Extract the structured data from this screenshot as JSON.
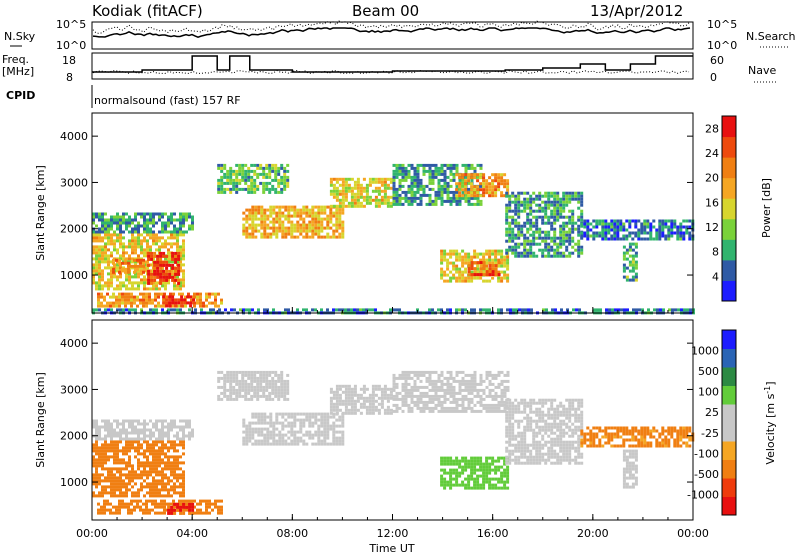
{
  "header": {
    "station": "Kodiak (fitACF)",
    "beam": "Beam 00",
    "date": "13/Apr/2012"
  },
  "strips": {
    "nsky_label": "N.Sky",
    "nsearch_label": "N.Search",
    "nsky_ticks": [
      "10^5",
      "10^0"
    ],
    "nsearch_ticks": [
      "10^5",
      "10^0"
    ],
    "freq_label_1": "Freq.",
    "freq_label_2": "[MHz]",
    "freq_ticks": [
      "18",
      "8"
    ],
    "nave_label": "Nave",
    "nave_ticks": [
      "60",
      "0"
    ],
    "cpid_label": "CPID",
    "cpid_text": "normalsound (fast) 157 RF"
  },
  "colors": {
    "power_bar": [
      "#1c1cff",
      "#2f5aa5",
      "#31b46e",
      "#7ad23a",
      "#d7d52e",
      "#f5a623",
      "#f07f12",
      "#ee4a0d",
      "#e81010"
    ],
    "velocity_bar": [
      "#e81010",
      "#ef3b0c",
      "#f07f12",
      "#f5a623",
      "#c8c8c8",
      "#c8c8c8",
      "#62cc3a",
      "#2c8a43",
      "#2a64b5",
      "#1c1cff"
    ],
    "ground_scatter": "#c8c8c8"
  },
  "chart_data": [
    {
      "type": "heatmap",
      "title": "Power",
      "xlabel": "Time UT",
      "ylabel": "Slant Range [km]",
      "xlim": [
        "00:00",
        "24:00"
      ],
      "ylim": [
        180,
        4500
      ],
      "x_ticks": [
        "00:00",
        "04:00",
        "08:00",
        "12:00",
        "16:00",
        "20:00",
        "00:00"
      ],
      "y_ticks": [
        1000,
        2000,
        3000,
        4000
      ],
      "colorbar_label": "Power [dB]",
      "colorbar_ticks": [
        4,
        8,
        12,
        16,
        20,
        24,
        28
      ],
      "colorbar_range": [
        0,
        30
      ],
      "regions": [
        {
          "t0": 0.0,
          "t1": 3.6,
          "r0": 700,
          "r1": 1900,
          "value": 16
        },
        {
          "t0": 2.2,
          "t1": 3.4,
          "r0": 800,
          "r1": 1500,
          "value": 27
        },
        {
          "t0": 0.8,
          "t1": 2.0,
          "r0": 1050,
          "r1": 1350,
          "value": 22
        },
        {
          "t0": 0.2,
          "t1": 5.2,
          "r0": 300,
          "r1": 620,
          "value": 20
        },
        {
          "t0": 2.8,
          "t1": 4.0,
          "r0": 360,
          "r1": 560,
          "value": 27
        },
        {
          "t0": 0.0,
          "t1": 4.0,
          "r0": 1900,
          "r1": 2350,
          "value": 8
        },
        {
          "t0": 6.0,
          "t1": 10.0,
          "r0": 1800,
          "r1": 2500,
          "value": 18
        },
        {
          "t0": 9.5,
          "t1": 12.0,
          "r0": 2500,
          "r1": 3100,
          "value": 16
        },
        {
          "t0": 5.0,
          "t1": 7.8,
          "r0": 2800,
          "r1": 3400,
          "value": 10
        },
        {
          "t0": 12.0,
          "t1": 15.5,
          "r0": 2500,
          "r1": 3400,
          "value": 8
        },
        {
          "t0": 14.5,
          "t1": 16.6,
          "r0": 2700,
          "r1": 3200,
          "value": 20
        },
        {
          "t0": 13.9,
          "t1": 16.6,
          "r0": 850,
          "r1": 1550,
          "value": 16
        },
        {
          "t0": 15.0,
          "t1": 16.2,
          "r0": 1000,
          "r1": 1300,
          "value": 24
        },
        {
          "t0": 16.5,
          "t1": 19.5,
          "r0": 1400,
          "r1": 2800,
          "value": 8
        },
        {
          "t0": 19.5,
          "t1": 24.0,
          "r0": 1800,
          "r1": 2200,
          "value": 6
        },
        {
          "t0": 21.2,
          "t1": 21.7,
          "r0": 900,
          "r1": 1700,
          "value": 10
        },
        {
          "t0": 0.0,
          "t1": 24.0,
          "r0": 200,
          "r1": 280,
          "value": 6
        }
      ]
    },
    {
      "type": "heatmap",
      "title": "Velocity",
      "xlabel": "Time UT",
      "ylabel": "Slant Range [km]",
      "xlim": [
        "00:00",
        "24:00"
      ],
      "ylim": [
        180,
        4500
      ],
      "x_ticks": [
        "00:00",
        "04:00",
        "08:00",
        "12:00",
        "16:00",
        "20:00",
        "00:00"
      ],
      "y_ticks": [
        1000,
        2000,
        3000,
        4000
      ],
      "colorbar_label": "Velocity [m s^-1]",
      "colorbar_ticks": [
        1000,
        500,
        100,
        25,
        -25,
        -100,
        -500,
        -1000
      ],
      "regions": [
        {
          "t0": 0.0,
          "t1": 3.6,
          "r0": 700,
          "r1": 1900,
          "value": -300
        },
        {
          "t0": 0.2,
          "t1": 5.2,
          "r0": 300,
          "r1": 620,
          "value": -200
        },
        {
          "t0": 3.0,
          "t1": 4.0,
          "r0": 350,
          "r1": 550,
          "value": -600
        },
        {
          "t0": 0.0,
          "t1": 4.0,
          "r0": 1900,
          "r1": 2350,
          "value": 0
        },
        {
          "t0": 6.0,
          "t1": 10.0,
          "r0": 1800,
          "r1": 2500,
          "value": 0
        },
        {
          "t0": 9.5,
          "t1": 12.0,
          "r0": 2500,
          "r1": 3100,
          "value": 0
        },
        {
          "t0": 5.0,
          "t1": 7.8,
          "r0": 2800,
          "r1": 3400,
          "value": 0
        },
        {
          "t0": 12.0,
          "t1": 16.6,
          "r0": 2500,
          "r1": 3400,
          "value": 0
        },
        {
          "t0": 13.9,
          "t1": 16.6,
          "r0": 850,
          "r1": 1550,
          "value": 60
        },
        {
          "t0": 16.5,
          "t1": 19.5,
          "r0": 1400,
          "r1": 2800,
          "value": 0
        },
        {
          "t0": 19.5,
          "t1": 24.0,
          "r0": 1800,
          "r1": 2200,
          "value": -150
        },
        {
          "t0": 21.2,
          "t1": 21.7,
          "r0": 900,
          "r1": 1700,
          "value": 0
        }
      ]
    }
  ]
}
